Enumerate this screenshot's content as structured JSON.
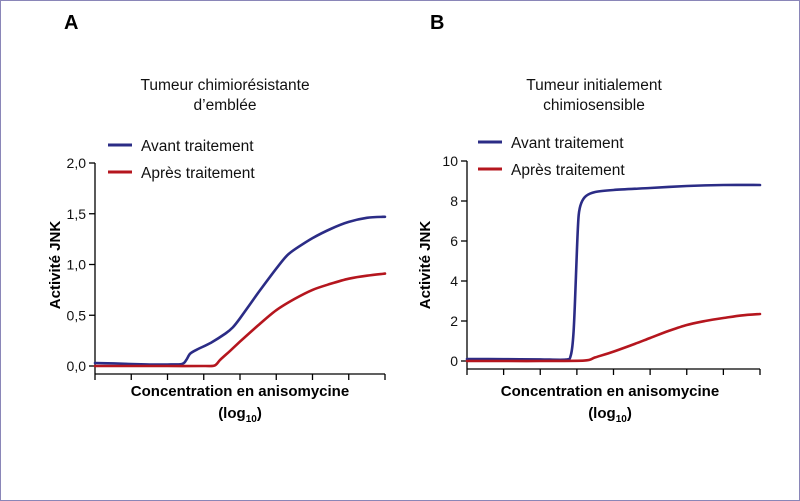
{
  "colors": {
    "avant": "#2b2c86",
    "apres": "#b5161e",
    "frame": "#8a86b8"
  },
  "chart_data": [
    {
      "panel": "A",
      "type": "line",
      "title": [
        "Tumeur chimiorésistante",
        "d’emblée"
      ],
      "ylabel": "Activité JNK",
      "xlabel": [
        "Concentration en anisomycine",
        "(log",
        "10",
        ")"
      ],
      "xscale": "log10 (unlabelled ticks)",
      "x_ticks_count": 9,
      "ylim": [
        0,
        2
      ],
      "yticks": [
        "0,0",
        "0,5",
        "1,0",
        "1,5",
        "2,0"
      ],
      "ytick_values": [
        0,
        0.5,
        1.0,
        1.5,
        2.0
      ],
      "xlim": [
        0,
        8
      ],
      "legend": "top-left",
      "series": [
        {
          "name": "Avant traitement",
          "color_key": "avant",
          "points": [
            [
              0,
              0.03
            ],
            [
              1,
              0.02
            ],
            [
              1.5,
              0.015
            ],
            [
              2,
              0.015
            ],
            [
              2.4,
              0.02
            ],
            [
              2.52,
              0.06
            ],
            [
              2.62,
              0.12
            ],
            [
              2.8,
              0.16
            ],
            [
              3.2,
              0.23
            ],
            [
              3.6,
              0.32
            ],
            [
              3.8,
              0.38
            ],
            [
              4.0,
              0.47
            ],
            [
              4.5,
              0.72
            ],
            [
              5.0,
              0.96
            ],
            [
              5.3,
              1.09
            ],
            [
              5.6,
              1.17
            ],
            [
              6.0,
              1.26
            ],
            [
              6.5,
              1.35
            ],
            [
              7.0,
              1.42
            ],
            [
              7.5,
              1.46
            ],
            [
              8.0,
              1.47
            ]
          ]
        },
        {
          "name": "Après traitement",
          "color_key": "apres",
          "points": [
            [
              0,
              0
            ],
            [
              1,
              0
            ],
            [
              2,
              0
            ],
            [
              3,
              0
            ],
            [
              3.3,
              0.005
            ],
            [
              3.45,
              0.06
            ],
            [
              3.7,
              0.14
            ],
            [
              4.0,
              0.24
            ],
            [
              4.5,
              0.4
            ],
            [
              5.0,
              0.55
            ],
            [
              5.5,
              0.66
            ],
            [
              6.0,
              0.75
            ],
            [
              6.5,
              0.81
            ],
            [
              7.0,
              0.86
            ],
            [
              7.5,
              0.89
            ],
            [
              8.0,
              0.91
            ]
          ]
        }
      ]
    },
    {
      "panel": "B",
      "type": "line",
      "title": [
        "Tumeur initialement",
        "chimiosensible"
      ],
      "ylabel": "Activité JNK",
      "xlabel": [
        "Concentration en anisomycine",
        "(log",
        "10",
        ")"
      ],
      "xscale": "log10 (unlabelled ticks)",
      "x_ticks_count": 9,
      "ylim": [
        0,
        10
      ],
      "yticks": [
        "0",
        "2",
        "4",
        "6",
        "8",
        "10"
      ],
      "ytick_values": [
        0,
        2,
        4,
        6,
        8,
        10
      ],
      "xlim": [
        0,
        8
      ],
      "legend": "top-left",
      "series": [
        {
          "name": "Avant traitement",
          "color_key": "avant",
          "points": [
            [
              0,
              0.1
            ],
            [
              1,
              0.09
            ],
            [
              2,
              0.08
            ],
            [
              2.7,
              0.07
            ],
            [
              2.83,
              0.25
            ],
            [
              2.9,
              1.2
            ],
            [
              2.95,
              3.0
            ],
            [
              3.0,
              5.5
            ],
            [
              3.05,
              7.3
            ],
            [
              3.12,
              7.9
            ],
            [
              3.25,
              8.25
            ],
            [
              3.5,
              8.45
            ],
            [
              4,
              8.55
            ],
            [
              5,
              8.65
            ],
            [
              6,
              8.75
            ],
            [
              7,
              8.8
            ],
            [
              8,
              8.8
            ]
          ]
        },
        {
          "name": "Après traitement",
          "color_key": "apres",
          "points": [
            [
              0,
              0
            ],
            [
              1,
              0
            ],
            [
              2,
              0
            ],
            [
              3.2,
              0.02
            ],
            [
              3.5,
              0.18
            ],
            [
              4,
              0.47
            ],
            [
              4.5,
              0.8
            ],
            [
              5,
              1.15
            ],
            [
              5.5,
              1.5
            ],
            [
              6,
              1.8
            ],
            [
              6.5,
              2.0
            ],
            [
              7,
              2.15
            ],
            [
              7.5,
              2.28
            ],
            [
              8,
              2.35
            ]
          ]
        }
      ]
    }
  ]
}
